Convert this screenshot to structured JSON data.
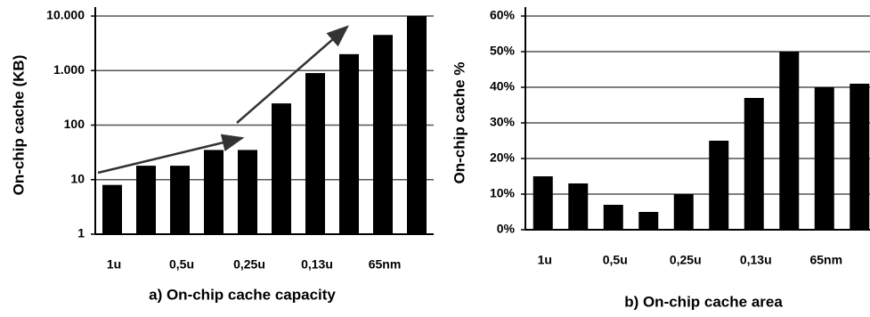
{
  "chart_data": [
    {
      "type": "bar",
      "title": "a) On-chip cache capacity",
      "y_label": "On-chip cache (KB)",
      "categories": [
        "1u",
        null,
        "0,5u",
        null,
        "0,25u",
        null,
        "0,13u",
        null,
        "65nm",
        null
      ],
      "values": [
        8,
        18,
        18,
        35,
        35,
        250,
        900,
        2000,
        4500,
        10000
      ],
      "color": "#000000",
      "log_scale": true,
      "grid": true,
      "ylim": [
        1,
        10000
      ],
      "yticks": [
        1,
        10,
        100,
        {
          "value": 1000,
          "label": "1.000"
        },
        {
          "value": 10000,
          "label": "10.000"
        }
      ]
    },
    {
      "type": "bar",
      "title": "b) On-chip cache area",
      "y_label": "On-chip cache %",
      "categories": [
        "1u",
        null,
        "0,5u",
        null,
        "0,25u",
        null,
        "0,13u",
        null,
        "65nm",
        null
      ],
      "values": [
        15,
        13,
        7,
        5,
        10,
        25,
        37,
        50,
        40,
        41
      ],
      "color": "#000000",
      "log_scale": false,
      "grid": true,
      "ylim": [
        0,
        60
      ],
      "yticks": [
        {
          "value": 0,
          "label": "0%"
        },
        {
          "value": 10,
          "label": "10%"
        },
        {
          "value": 20,
          "label": "20%"
        },
        {
          "value": 30,
          "label": "30%"
        },
        {
          "value": 40,
          "label": "40%"
        },
        {
          "value": 50,
          "label": "50%"
        },
        {
          "value": 60,
          "label": "60%"
        }
      ]
    }
  ]
}
